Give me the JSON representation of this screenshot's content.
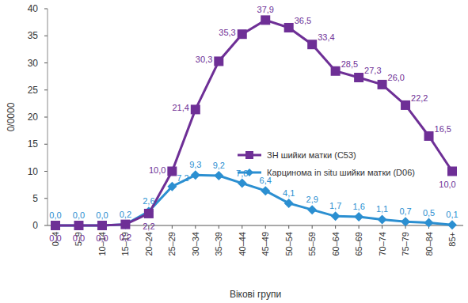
{
  "chart_data": {
    "type": "line",
    "x_label": "Вікові групи",
    "y_label": "0/0000",
    "categories": [
      "0–4",
      "5–9",
      "10–14",
      "15–19",
      "20–24",
      "25–29",
      "30–34",
      "35–39",
      "40–44",
      "45–49",
      "50–54",
      "55–59",
      "60–64",
      "65–69",
      "70–74",
      "75–79",
      "80–84",
      "85+"
    ],
    "series": [
      {
        "name": "ЗН шийки матки (С53)",
        "color": "#6e2f96",
        "marker": "square",
        "line_style": "solid",
        "values": [
          0.0,
          0.0,
          0.0,
          0.2,
          2.2,
          10.0,
          21.4,
          30.3,
          35.3,
          37.9,
          36.5,
          33.4,
          28.5,
          27.3,
          26.0,
          22.2,
          16.5,
          10.0
        ],
        "value_labels": [
          "0,0",
          "0,0",
          "0,0",
          "0,2",
          "2,2",
          "10,0",
          "21,4",
          "30,3",
          "35,3",
          "37,9",
          "36,5",
          "33,4",
          "28,5",
          "27,3",
          "26,0",
          "22,2",
          "16,5",
          "10,0"
        ]
      },
      {
        "name": "Карцинома in situ шийки матки (D06)",
        "color": "#2b8fd1",
        "marker": "diamond",
        "line_style": "solid",
        "values": [
          0.0,
          0.0,
          0.0,
          0.2,
          2.6,
          7.2,
          9.3,
          9.2,
          7.8,
          6.4,
          4.1,
          2.9,
          1.7,
          1.6,
          1.1,
          0.7,
          0.5,
          0.1
        ],
        "value_labels": [
          "0,0",
          "0,0",
          "0,0",
          "0,2",
          "2,6",
          "7,2",
          "9,3",
          "9,2",
          "7,8",
          "6,4",
          "4,1",
          "2,9",
          "1,7",
          "1,6",
          "1,1",
          "0,7",
          "0,5",
          "0,1"
        ]
      }
    ],
    "ylim": [
      0,
      40
    ],
    "yticks": [
      0,
      5,
      10,
      15,
      20,
      25,
      30,
      35,
      40
    ],
    "grid": false,
    "legend": "center",
    "data_labels": true
  }
}
